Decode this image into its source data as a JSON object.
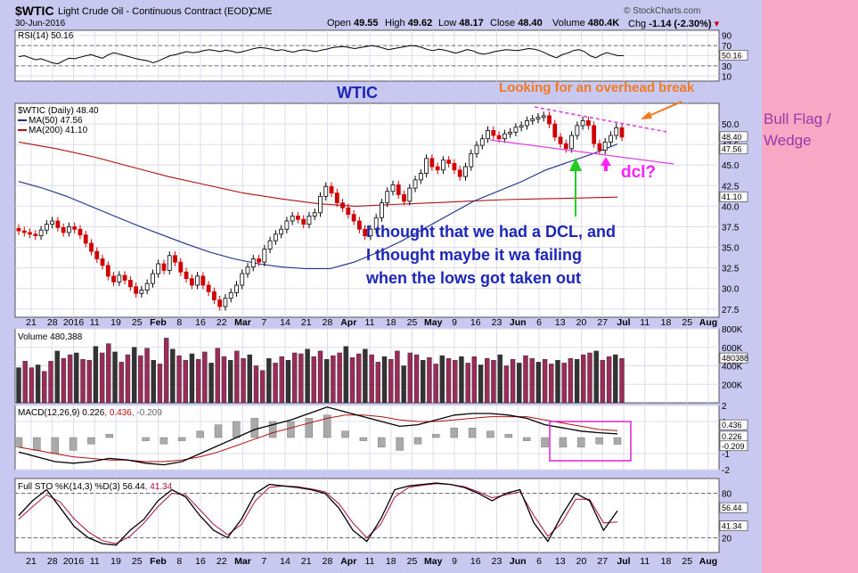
{
  "header": {
    "symbol": "$WTIC",
    "name": "Light Crude Oil - Continuous Contract (EOD)",
    "exchange": "CME",
    "date": "30-Jun-2016",
    "brand": "© StockCharts.com",
    "ohlc": {
      "open_label": "Open",
      "open": "49.55",
      "high_label": "High",
      "high": "49.62",
      "low_label": "Low",
      "low": "48.17",
      "close_label": "Close",
      "close": "48.40",
      "volume_label": "Volume",
      "volume": "480.4K",
      "chg_label": "Chg",
      "chg": "-1.14 (-2.30%)"
    }
  },
  "annotations": {
    "wtic_title": "WTIC",
    "overhead": "Looking for an overhead break",
    "dcl_q": "dcl?",
    "comment_lines": [
      "I thought that we had a DCL, and",
      "I thought maybe it wa failing",
      "when the lows got taken out"
    ],
    "side_note": "Bull Flag / Wedge"
  },
  "colors": {
    "up": "#000000",
    "down": "#d00000",
    "ma50": "#1a2f8a",
    "ma200": "#b01010",
    "volume": "#9b2c59",
    "rsi": "#000000",
    "stoch_d": "#b01040",
    "trend": "#e040e0",
    "arrow_orange": "#f07a20",
    "arrow_green": "#22cc22",
    "arrow_magenta": "#ff22ff",
    "note_blue": "#1c26b8",
    "note_purple": "#9a3aa8"
  },
  "chart_data": [
    {
      "type": "line",
      "title": "RSI(14) 50.16",
      "ylim": [
        0,
        100
      ],
      "y_ticks": [
        "90",
        "70",
        "50",
        "30",
        "10"
      ],
      "last_value": "50.16",
      "series": [
        {
          "name": "RSI(14)",
          "values": [
            48,
            50,
            46,
            42,
            44,
            40,
            36,
            34,
            40,
            45,
            44,
            47,
            50,
            52,
            48,
            45,
            52,
            56,
            53,
            50,
            47,
            44,
            42,
            40,
            36,
            40,
            45,
            50,
            52,
            55,
            58,
            56,
            57,
            60,
            62,
            60,
            58,
            61,
            59,
            56,
            58,
            61,
            64,
            66,
            65,
            63,
            60,
            62,
            59,
            57,
            60,
            62,
            60,
            58,
            61,
            63,
            66,
            67,
            68,
            66,
            64,
            66,
            68,
            70,
            68,
            65,
            62,
            64,
            66,
            68,
            70,
            69,
            66,
            62,
            60,
            63,
            61,
            58,
            55,
            58,
            62,
            60,
            55,
            53,
            55,
            58,
            60,
            62,
            61,
            60,
            62,
            64,
            63,
            60,
            55,
            50,
            46,
            52,
            55,
            60,
            62,
            58,
            50,
            46,
            52,
            56,
            53,
            50,
            50.16
          ]
        }
      ]
    },
    {
      "type": "candlestick",
      "title": "$WTIC (Daily) 48.40",
      "ylim": [
        26.5,
        52.5
      ],
      "y_ticks": [
        "50.0",
        "47.5",
        "45.0",
        "42.5",
        "40.0",
        "37.5",
        "35.0",
        "32.5",
        "30.0",
        "27.5"
      ],
      "x_tick_labels": [
        "21",
        "28",
        "2016",
        "11",
        "19",
        "25",
        "Feb",
        "8",
        "16",
        "22",
        "Mar",
        "7",
        "14",
        "21",
        "28",
        "Apr",
        "11",
        "18",
        "25",
        "May",
        "9",
        "16",
        "23",
        "Jun",
        "6",
        "13",
        "20",
        "27",
        "Jul",
        "11",
        "18",
        "25",
        "Aug"
      ],
      "series": [
        {
          "name": "$WTIC (Daily)",
          "last": "48.40",
          "values": [
            37.0,
            36.8,
            36.6,
            36.4,
            37.1,
            37.8,
            38.2,
            37.4,
            36.8,
            37.5,
            37.2,
            36.5,
            35.5,
            34.5,
            33.6,
            32.8,
            31.5,
            30.8,
            31.6,
            31.0,
            30.2,
            29.4,
            29.8,
            30.6,
            31.8,
            33.0,
            32.2,
            34.0,
            33.2,
            32.0,
            31.2,
            30.4,
            31.5,
            30.4,
            29.6,
            28.6,
            27.8,
            28.8,
            29.5,
            30.4,
            31.8,
            32.6,
            33.6,
            33.2,
            34.8,
            35.8,
            36.6,
            37.2,
            38.2,
            38.8,
            38.4,
            37.8,
            38.8,
            39.2,
            41.2,
            42.4,
            41.6,
            40.4,
            39.8,
            39.0,
            38.2,
            37.2,
            36.4,
            37.2,
            38.6,
            40.4,
            41.8,
            42.6,
            41.4,
            40.6,
            42.2,
            43.2,
            44.0,
            45.8,
            44.8,
            44.4,
            45.6,
            45.2,
            44.4,
            43.6,
            44.8,
            46.4,
            47.4,
            48.2,
            49.2,
            48.6,
            48.2,
            48.8,
            49.0,
            49.6,
            49.8,
            50.4,
            50.6,
            50.8,
            51.0,
            50.0,
            48.4,
            47.6,
            47.0,
            48.6,
            49.8,
            50.4,
            49.8,
            47.6,
            46.8,
            47.8,
            48.6,
            49.54,
            48.4
          ]
        },
        {
          "name": "MA(50)",
          "last": "47.56",
          "values": [
            43.0,
            42.2,
            41.2,
            40.0,
            38.8,
            37.6,
            36.5,
            35.4,
            34.4,
            33.6,
            33.0,
            32.6,
            32.4,
            32.4,
            33.2,
            34.4,
            35.8,
            37.4,
            39.0,
            40.6,
            41.8,
            43.0,
            44.4,
            45.4,
            46.4,
            47.56
          ]
        },
        {
          "name": "MA(200)",
          "last": "41.10",
          "values": [
            47.8,
            47.0,
            46.0,
            44.8,
            43.6,
            42.6,
            41.6,
            40.9,
            40.3,
            40.0,
            40.2,
            40.4,
            40.6,
            40.8,
            40.9,
            41.0,
            41.1
          ]
        }
      ]
    },
    {
      "type": "bar",
      "title": "Volume 480,388",
      "y_ticks": [
        "800K",
        "600K",
        "400K",
        "200K"
      ],
      "ylim": [
        0,
        800000
      ],
      "last_value": "480388",
      "values": [
        380,
        450,
        380,
        410,
        340,
        450,
        560,
        480,
        520,
        540,
        470,
        460,
        610,
        540,
        640,
        550,
        440,
        520,
        600,
        510,
        590,
        460,
        420,
        700,
        580,
        510,
        460,
        530,
        470,
        550,
        430,
        590,
        500,
        460,
        560,
        480,
        520,
        400,
        350,
        480,
        430,
        500,
        460,
        540,
        530,
        580,
        500,
        560,
        470,
        510,
        540,
        610,
        490,
        530,
        580,
        520,
        440,
        500,
        470,
        560,
        400,
        540,
        520,
        460,
        490,
        420,
        510,
        480,
        460,
        500,
        430,
        500,
        410,
        480,
        460,
        520,
        400,
        470,
        430,
        510,
        480,
        440,
        470,
        420,
        460,
        430,
        480,
        470,
        520,
        540,
        560,
        460,
        500,
        520,
        480
      ]
    },
    {
      "type": "line",
      "title": "MACD(12,26,9)",
      "ylim": [
        -2,
        2
      ],
      "y_ticks": [
        "2",
        "1",
        "-1",
        "-2"
      ],
      "legend_values": [
        "0.226",
        "0.436",
        "-0.209"
      ],
      "series": [
        {
          "name": "MACD(12,26,9)",
          "values": [
            -0.9,
            -1.2,
            -1.5,
            -1.6,
            -1.5,
            -1.3,
            -1.4,
            -1.6,
            -1.7,
            -1.5,
            -1.0,
            -0.5,
            0.0,
            0.5,
            0.8,
            1.1,
            1.5,
            1.9,
            1.6,
            1.3,
            1.0,
            0.7,
            0.8,
            1.1,
            1.4,
            1.5,
            1.5,
            1.4,
            1.2,
            0.8,
            0.6,
            0.4,
            0.3,
            0.226
          ]
        },
        {
          "name": "Signal",
          "values": [
            -0.6,
            -0.8,
            -1.0,
            -1.2,
            -1.3,
            -1.4,
            -1.4,
            -1.5,
            -1.5,
            -1.4,
            -1.2,
            -0.9,
            -0.5,
            -0.1,
            0.3,
            0.6,
            0.9,
            1.2,
            1.4,
            1.4,
            1.3,
            1.1,
            1.0,
            1.0,
            1.1,
            1.2,
            1.3,
            1.3,
            1.3,
            1.1,
            0.9,
            0.7,
            0.5,
            0.436
          ]
        }
      ]
    },
    {
      "type": "line",
      "title": "Full STO %K(14,3) %D(3)",
      "ylim": [
        0,
        100
      ],
      "y_ticks": [
        "80",
        "20"
      ],
      "legend_values": [
        "56.44",
        "41.34"
      ],
      "series": [
        {
          "name": "%K(14,3)",
          "values": [
            50,
            70,
            85,
            60,
            35,
            20,
            12,
            10,
            30,
            45,
            70,
            85,
            75,
            50,
            30,
            20,
            45,
            80,
            92,
            90,
            88,
            85,
            80,
            60,
            30,
            15,
            45,
            85,
            90,
            92,
            94,
            92,
            88,
            80,
            70,
            80,
            85,
            40,
            15,
            50,
            80,
            70,
            30,
            56.44
          ]
        },
        {
          "name": "%D(3)",
          "values": [
            45,
            62,
            78,
            68,
            45,
            28,
            16,
            12,
            22,
            40,
            62,
            80,
            78,
            58,
            38,
            24,
            38,
            70,
            88,
            90,
            89,
            86,
            82,
            66,
            40,
            20,
            38,
            75,
            88,
            91,
            93,
            92,
            89,
            82,
            74,
            78,
            82,
            50,
            22,
            40,
            72,
            72,
            40,
            41.34
          ]
        }
      ]
    }
  ]
}
